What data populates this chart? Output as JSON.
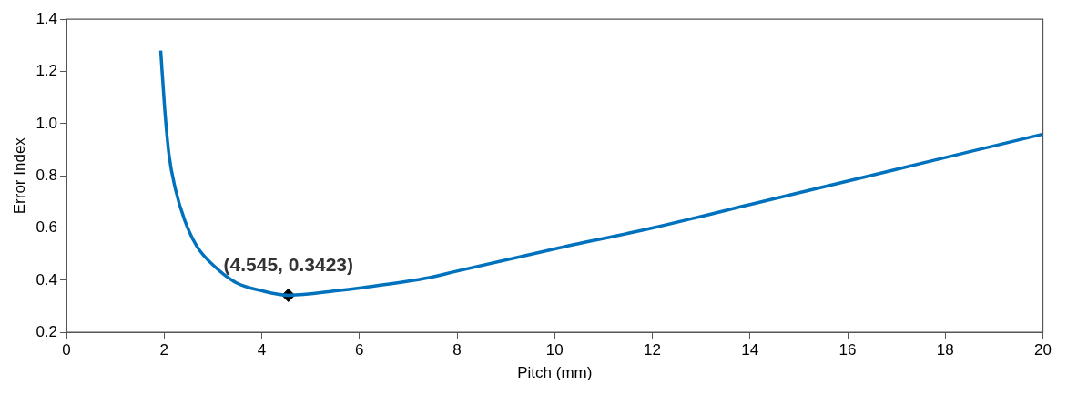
{
  "chart_data": {
    "type": "line",
    "xlabel": "Pitch (mm)",
    "ylabel": "Error Index",
    "xlim": [
      0,
      20
    ],
    "xticks": [
      0,
      2,
      4,
      6,
      8,
      10,
      12,
      14,
      16,
      18,
      20
    ],
    "ylim": [
      0.2,
      1.4
    ],
    "yticks": [
      0.2,
      0.4,
      0.6,
      0.8,
      {
        "value": 1.0,
        "label": "1.0"
      },
      1.2,
      1.4
    ],
    "grid": false,
    "legend": false,
    "series": [
      {
        "type": "line",
        "color": "#0072bd",
        "marker": "none",
        "line_style": "solid",
        "x": [
          1.93,
          2.01,
          2.1,
          2.23,
          2.42,
          2.67,
          3.05,
          3.48,
          3.99,
          4.545,
          5.56,
          6,
          7.43,
          8,
          10,
          12,
          14,
          16,
          18,
          20
        ],
        "values": [
          1.28,
          1.06,
          0.88,
          0.75,
          0.63,
          0.53,
          0.45,
          0.39,
          0.36,
          0.3423,
          0.36,
          0.37,
          0.41,
          0.435,
          0.52,
          0.6,
          0.69,
          0.78,
          0.87,
          0.96
        ]
      },
      {
        "type": "scatter",
        "color": "#000000",
        "marker": "diamond",
        "x": [
          4.545
        ],
        "values": [
          0.3423
        ]
      }
    ],
    "annotations": [
      {
        "text": "(4.545, 0.3423)",
        "x": 4.545,
        "y": 0.3423
      }
    ]
  }
}
